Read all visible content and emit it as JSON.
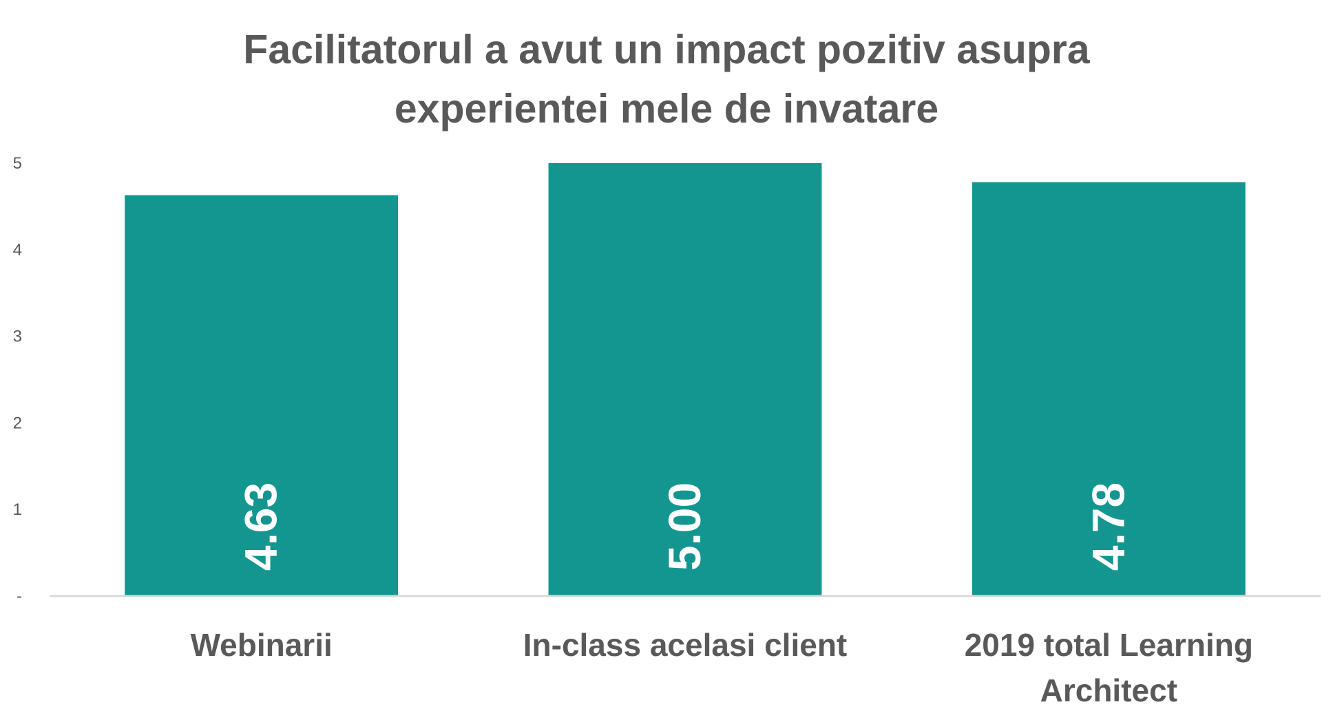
{
  "chart_data": {
    "type": "bar",
    "title": [
      "Facilitatorul a avut un impact pozitiv asupra",
      "experientei mele de invatare"
    ],
    "categories": [
      [
        "Webinarii"
      ],
      [
        "In-class acelasi client"
      ],
      [
        "2019 total Learning",
        "Architect"
      ]
    ],
    "values": [
      4.63,
      5.0,
      4.78
    ],
    "data_labels": [
      "4.63",
      "5.00",
      "4.78"
    ],
    "y_ticks": [
      {
        "value": 0,
        "label": "-"
      },
      {
        "value": 1,
        "label": "1"
      },
      {
        "value": 2,
        "label": "2"
      },
      {
        "value": 3,
        "label": "3"
      },
      {
        "value": 4,
        "label": "4"
      },
      {
        "value": 5,
        "label": "5"
      }
    ],
    "ylim": [
      0,
      5
    ],
    "grid": false,
    "legend": "none",
    "colors": {
      "bar": "#139690",
      "text": "#595959",
      "axis": "#d9d9d9",
      "data_label": "#ffffff"
    }
  }
}
